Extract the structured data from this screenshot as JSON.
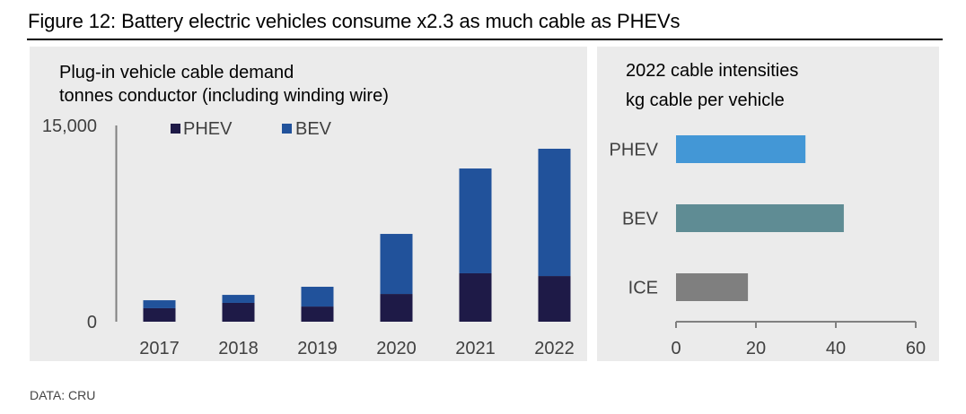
{
  "figure_title": "Figure 12: Battery electric vehicles consume x2.3 as much cable as PHEVs",
  "source": "DATA: CRU",
  "colors": {
    "phev_stack": "#1e1a47",
    "bev_stack": "#21529b",
    "phev_intensity": "#4397d6",
    "bev_intensity": "#5f8c94",
    "ice_intensity": "#7f7f7f",
    "panel_bg": "#ebebeb",
    "axis": "#808080",
    "tick_text": "#404040"
  },
  "chart_data": [
    {
      "type": "bar",
      "stacked": true,
      "title": "Plug-in vehicle cable demand",
      "subtitle": "tonnes conductor (including winding wire)",
      "xlabel": "",
      "ylabel": "",
      "categories": [
        "2017",
        "2018",
        "2019",
        "2020",
        "2021",
        "2022"
      ],
      "series": [
        {
          "name": "PHEV",
          "color": "#1e1a47",
          "values": [
            1030,
            1440,
            1160,
            2120,
            3700,
            3490
          ]
        },
        {
          "name": "BEV",
          "color": "#21529b",
          "values": [
            610,
            610,
            1510,
            4590,
            8010,
            9730
          ]
        }
      ],
      "ylim": [
        0,
        15000
      ],
      "yticks": [
        0,
        15000
      ],
      "ytick_labels": [
        "0",
        "15,000"
      ],
      "grid": false,
      "legend": {
        "placement": "top-center",
        "entries": [
          "PHEV",
          "BEV"
        ]
      }
    },
    {
      "type": "bar",
      "orientation": "horizontal",
      "title": "2022 cable intensities",
      "subtitle": "kg cable per vehicle",
      "categories": [
        "PHEV",
        "BEV",
        "ICE"
      ],
      "values": [
        32.4,
        42.0,
        18.0
      ],
      "colors": [
        "#4397d6",
        "#5f8c94",
        "#7f7f7f"
      ],
      "xlim": [
        0,
        60
      ],
      "xticks": [
        0,
        20,
        40,
        60
      ],
      "xtick_labels": [
        "0",
        "20",
        "40",
        "60"
      ],
      "grid": false
    }
  ]
}
